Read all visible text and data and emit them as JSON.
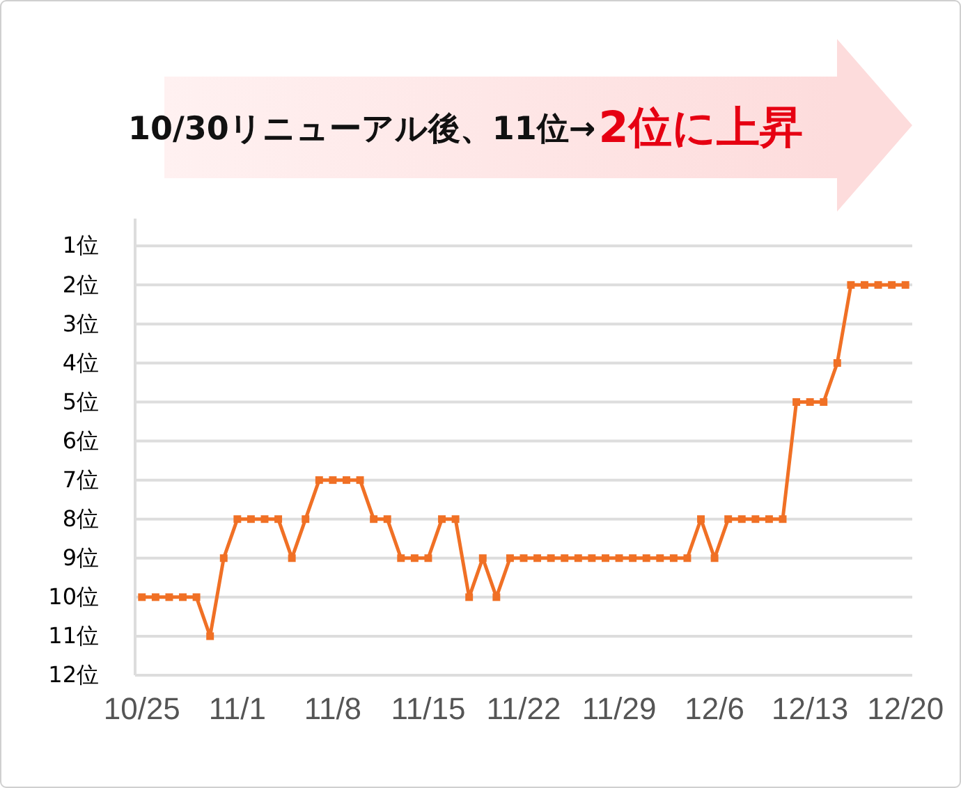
{
  "chart_data": {
    "type": "line",
    "title": "10/30リニューアル後、11位→",
    "annotations": [
      "2位に上昇"
    ],
    "x": [
      "--10-25",
      "--10-26",
      "--10-27",
      "--10-28",
      "--10-29",
      "--10-30",
      "--10-31",
      "--11-01",
      "--11-02",
      "--11-03",
      "--11-04",
      "--11-05",
      "--11-06",
      "--11-07",
      "--11-08",
      "--11-09",
      "--11-10",
      "--11-11",
      "--11-12",
      "--11-13",
      "--11-14",
      "--11-15",
      "--11-16",
      "--11-17",
      "--11-18",
      "--11-19",
      "--11-20",
      "--11-21",
      "--11-22",
      "--11-23",
      "--11-24",
      "--11-25",
      "--11-26",
      "--11-27",
      "--11-28",
      "--11-29",
      "--11-30",
      "--12-01",
      "--12-02",
      "--12-03",
      "--12-04",
      "--12-05",
      "--12-06",
      "--12-07",
      "--12-08",
      "--12-09",
      "--12-10",
      "--12-11",
      "--12-12",
      "--12-13",
      "--12-14",
      "--12-15",
      "--12-16",
      "--12-17",
      "--12-18",
      "--12-19",
      "--12-20"
    ],
    "series": [
      {
        "color": "#f07025",
        "values": [
          10,
          10,
          10,
          10,
          10,
          11,
          9,
          8,
          8,
          8,
          8,
          9,
          8,
          7,
          7,
          7,
          7,
          8,
          8,
          9,
          9,
          9,
          8,
          8,
          10,
          9,
          10,
          9,
          9,
          9,
          9,
          9,
          9,
          9,
          9,
          9,
          9,
          9,
          9,
          9,
          9,
          8,
          9,
          8,
          8,
          8,
          8,
          8,
          5,
          5,
          5,
          4,
          2,
          2,
          2,
          2,
          2
        ]
      }
    ],
    "xlim": [
      "--10-24T12:00",
      "--12-20T12:00"
    ],
    "xticks": [
      {
        "value": "--10-25",
        "label": "10/25"
      },
      {
        "value": "--11-01",
        "label": "11/1"
      },
      {
        "value": "--11-08",
        "label": "11/8"
      },
      {
        "value": "--11-15",
        "label": "11/15"
      },
      {
        "value": "--11-22",
        "label": "11/22"
      },
      {
        "value": "--11-29",
        "label": "11/29"
      },
      {
        "value": "--12-06",
        "label": "12/6"
      },
      {
        "value": "--12-13",
        "label": "12/13"
      },
      {
        "value": "--12-20",
        "label": "12/20"
      }
    ],
    "ylim": [
      12,
      0.3
    ],
    "yticks": [
      {
        "value": 1,
        "label": "1位"
      },
      {
        "value": 2,
        "label": "2位"
      },
      {
        "value": 3,
        "label": "3位"
      },
      {
        "value": 4,
        "label": "4位"
      },
      {
        "value": 5,
        "label": "5位"
      },
      {
        "value": 6,
        "label": "6位"
      },
      {
        "value": 7,
        "label": "7位"
      },
      {
        "value": 8,
        "label": "8位"
      },
      {
        "value": 9,
        "label": "9位"
      },
      {
        "value": 10,
        "label": "10位"
      },
      {
        "value": 11,
        "label": "11位"
      },
      {
        "value": 12,
        "label": "12位"
      }
    ],
    "grid": "y",
    "marker": "square",
    "line_style": "solid"
  }
}
